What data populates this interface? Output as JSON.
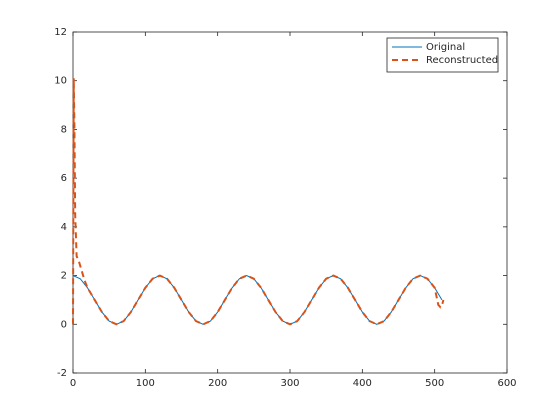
{
  "chart_data": {
    "type": "line",
    "xlim": [
      0,
      600
    ],
    "xticks": [
      0,
      100,
      200,
      300,
      400,
      500,
      600
    ],
    "ylim": [
      -2,
      12
    ],
    "yticks": [
      -2,
      0,
      2,
      4,
      6,
      8,
      10,
      12
    ],
    "legend": "northeast",
    "series": [
      {
        "name": "Original",
        "color": "#0072bd",
        "dash": false,
        "x": [
          0,
          10,
          20,
          30,
          40,
          50,
          60,
          70,
          80,
          90,
          100,
          110,
          120,
          130,
          140,
          150,
          160,
          170,
          180,
          190,
          200,
          210,
          220,
          230,
          240,
          250,
          260,
          270,
          280,
          290,
          300,
          310,
          320,
          330,
          340,
          350,
          360,
          370,
          380,
          390,
          400,
          410,
          420,
          430,
          440,
          450,
          460,
          470,
          480,
          490,
          500,
          510
        ],
        "values": [
          2,
          1.87,
          1.5,
          1,
          0.5,
          0.13,
          0,
          0.13,
          0.5,
          1,
          1.5,
          1.87,
          2,
          1.87,
          1.5,
          1,
          0.5,
          0.13,
          0,
          0.13,
          0.5,
          1,
          1.5,
          1.87,
          2,
          1.87,
          1.5,
          1,
          0.5,
          0.13,
          0,
          0.13,
          0.5,
          1,
          1.5,
          1.87,
          2,
          1.87,
          1.5,
          1,
          0.5,
          0.13,
          0,
          0.13,
          0.5,
          1,
          1.5,
          1.87,
          2,
          1.87,
          1.5,
          1
        ]
      },
      {
        "name": "Reconstructed",
        "color": "#d95319",
        "dash": true,
        "x": [
          0,
          1,
          2,
          3,
          5,
          8,
          12,
          16,
          20,
          30,
          40,
          50,
          60,
          70,
          80,
          90,
          100,
          110,
          120,
          130,
          140,
          150,
          160,
          170,
          180,
          190,
          200,
          210,
          220,
          230,
          240,
          250,
          260,
          270,
          280,
          290,
          300,
          310,
          320,
          330,
          340,
          350,
          360,
          370,
          380,
          390,
          400,
          410,
          420,
          430,
          440,
          450,
          460,
          470,
          480,
          490,
          500,
          505,
          508,
          510,
          512
        ],
        "values": [
          0,
          10.1,
          8,
          4.5,
          2.8,
          2.6,
          2.2,
          1.8,
          1.5,
          1,
          0.5,
          0.13,
          0,
          0.13,
          0.5,
          1,
          1.5,
          1.87,
          2,
          1.87,
          1.5,
          1,
          0.5,
          0.13,
          0,
          0.13,
          0.5,
          1,
          1.5,
          1.87,
          2,
          1.87,
          1.5,
          1,
          0.5,
          0.13,
          0,
          0.13,
          0.5,
          1,
          1.5,
          1.87,
          2,
          1.87,
          1.5,
          1,
          0.5,
          0.13,
          0,
          0.13,
          0.5,
          1,
          1.5,
          1.87,
          2,
          1.87,
          1.5,
          0.8,
          0.7,
          0.75,
          1
        ]
      }
    ]
  }
}
